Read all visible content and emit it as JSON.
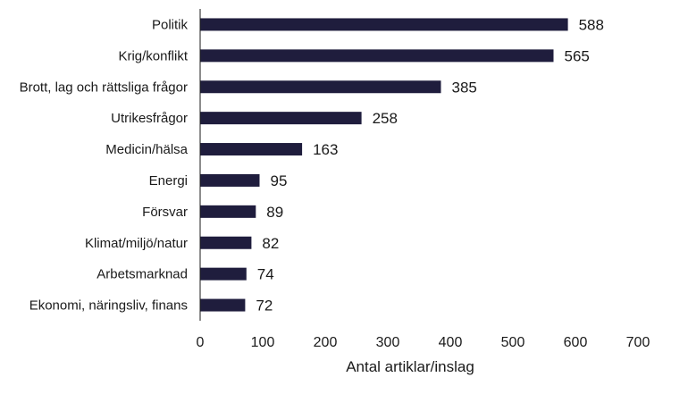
{
  "chart_data": {
    "type": "bar",
    "orientation": "horizontal",
    "categories": [
      "Politik",
      "Krig/konflikt",
      "Brott, lag och rättsliga frågor",
      "Utrikesfrågor",
      "Medicin/hälsa",
      "Energi",
      "Försvar",
      "Klimat/miljö/natur",
      "Arbetsmarknad",
      "Ekonomi, näringsliv, finans"
    ],
    "values": [
      588,
      565,
      385,
      258,
      163,
      95,
      89,
      82,
      74,
      72
    ],
    "value_labels": [
      "588",
      "565",
      "385",
      "258",
      "163",
      "95",
      "89",
      "82",
      "74",
      "72"
    ],
    "xticks": [
      "0",
      "100",
      "200",
      "300",
      "400",
      "500",
      "600",
      "700"
    ],
    "xlim": [
      0,
      700
    ],
    "xlabel": "Antal artiklar/inslag",
    "ylabel": "",
    "title": "",
    "grid": false,
    "bar_color": "#1f1d3d"
  }
}
